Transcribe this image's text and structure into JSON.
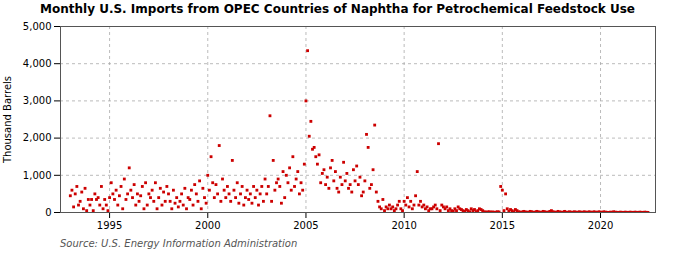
{
  "chart_data": {
    "type": "scatter",
    "title": "Monthly U.S. Imports from OPEC Countries of Naphtha for Petrochemical Feedstock Use",
    "ylabel": "Thousand Barrels",
    "source": "Source: U.S. Energy Information Administration",
    "color": "#cc0000",
    "marker": "square",
    "grid": true,
    "xlim": [
      1992.5,
      2022.8
    ],
    "xticks": [
      1995,
      2000,
      2005,
      2010,
      2015,
      2020
    ],
    "ylim": [
      0,
      5000
    ],
    "yticks": [
      0,
      {
        "value": 1000,
        "label": "1,000"
      },
      {
        "value": 2000,
        "label": "2,000"
      },
      {
        "value": 3000,
        "label": "3,000"
      },
      {
        "value": 4000,
        "label": "4,000"
      },
      {
        "value": 5000,
        "label": "5,000"
      }
    ],
    "x": [
      1993.0,
      1993.083,
      1993.167,
      1993.25,
      1993.333,
      1993.417,
      1993.5,
      1993.583,
      1993.667,
      1993.75,
      1993.833,
      1993.917,
      1994.0,
      1994.083,
      1994.167,
      1994.25,
      1994.333,
      1994.417,
      1994.5,
      1994.583,
      1994.667,
      1994.75,
      1994.833,
      1994.917,
      1995.0,
      1995.083,
      1995.167,
      1995.25,
      1995.333,
      1995.417,
      1995.5,
      1995.583,
      1995.667,
      1995.75,
      1995.833,
      1995.917,
      1996.0,
      1996.083,
      1996.167,
      1996.25,
      1996.333,
      1996.417,
      1996.5,
      1996.583,
      1996.667,
      1996.75,
      1996.833,
      1996.917,
      1997.0,
      1997.083,
      1997.167,
      1997.25,
      1997.333,
      1997.417,
      1997.5,
      1997.583,
      1997.667,
      1997.75,
      1997.833,
      1997.917,
      1998.0,
      1998.083,
      1998.167,
      1998.25,
      1998.333,
      1998.417,
      1998.5,
      1998.583,
      1998.667,
      1998.75,
      1998.833,
      1998.917,
      1999.0,
      1999.083,
      1999.167,
      1999.25,
      1999.333,
      1999.417,
      1999.5,
      1999.583,
      1999.667,
      1999.75,
      1999.833,
      1999.917,
      2000.0,
      2000.083,
      2000.167,
      2000.25,
      2000.333,
      2000.417,
      2000.5,
      2000.583,
      2000.667,
      2000.75,
      2000.833,
      2000.917,
      2001.0,
      2001.083,
      2001.167,
      2001.25,
      2001.333,
      2001.417,
      2001.5,
      2001.583,
      2001.667,
      2001.75,
      2001.833,
      2001.917,
      2002.0,
      2002.083,
      2002.167,
      2002.25,
      2002.333,
      2002.417,
      2002.5,
      2002.583,
      2002.667,
      2002.75,
      2002.833,
      2002.917,
      2003.0,
      2003.083,
      2003.167,
      2003.25,
      2003.333,
      2003.417,
      2003.5,
      2003.583,
      2003.667,
      2003.75,
      2003.833,
      2003.917,
      2004.0,
      2004.083,
      2004.167,
      2004.25,
      2004.333,
      2004.417,
      2004.5,
      2004.583,
      2004.667,
      2004.75,
      2004.833,
      2004.917,
      2005.0,
      2005.083,
      2005.167,
      2005.25,
      2005.333,
      2005.417,
      2005.5,
      2005.583,
      2005.667,
      2005.75,
      2005.833,
      2005.917,
      2006.0,
      2006.083,
      2006.167,
      2006.25,
      2006.333,
      2006.417,
      2006.5,
      2006.583,
      2006.667,
      2006.75,
      2006.833,
      2006.917,
      2007.0,
      2007.083,
      2007.167,
      2007.25,
      2007.333,
      2007.417,
      2007.5,
      2007.583,
      2007.667,
      2007.75,
      2007.833,
      2007.917,
      2008.0,
      2008.083,
      2008.167,
      2008.25,
      2008.333,
      2008.417,
      2008.5,
      2008.583,
      2008.667,
      2008.75,
      2008.833,
      2008.917,
      2009.0,
      2009.083,
      2009.167,
      2009.25,
      2009.333,
      2009.417,
      2009.5,
      2009.583,
      2009.667,
      2009.75,
      2009.833,
      2009.917,
      2010.0,
      2010.083,
      2010.167,
      2010.25,
      2010.333,
      2010.417,
      2010.5,
      2010.583,
      2010.667,
      2010.75,
      2010.833,
      2010.917,
      2011.0,
      2011.083,
      2011.167,
      2011.25,
      2011.333,
      2011.417,
      2011.5,
      2011.583,
      2011.667,
      2011.75,
      2011.833,
      2011.917,
      2012.0,
      2012.083,
      2012.167,
      2012.25,
      2012.333,
      2012.417,
      2012.5,
      2012.583,
      2012.667,
      2012.75,
      2012.833,
      2012.917,
      2013.0,
      2013.083,
      2013.167,
      2013.25,
      2013.333,
      2013.417,
      2013.5,
      2013.583,
      2013.667,
      2013.75,
      2013.833,
      2013.917,
      2014.0,
      2014.083,
      2014.167,
      2014.25,
      2014.333,
      2014.417,
      2014.5,
      2014.583,
      2014.667,
      2014.75,
      2014.833,
      2014.917,
      2015.0,
      2015.083,
      2015.167,
      2015.25,
      2015.333,
      2015.417,
      2015.5,
      2015.583,
      2015.667,
      2015.75,
      2015.833,
      2015.917,
      2016.0,
      2016.083,
      2016.167,
      2016.25,
      2016.333,
      2016.417,
      2016.5,
      2016.583,
      2016.667,
      2016.75,
      2016.833,
      2016.917,
      2017.0,
      2017.083,
      2017.167,
      2017.25,
      2017.333,
      2017.417,
      2017.5,
      2017.583,
      2017.667,
      2017.75,
      2017.833,
      2017.917,
      2018.0,
      2018.083,
      2018.167,
      2018.25,
      2018.333,
      2018.417,
      2018.5,
      2018.583,
      2018.667,
      2018.75,
      2018.833,
      2018.917,
      2019.0,
      2019.083,
      2019.167,
      2019.25,
      2019.333,
      2019.417,
      2019.5,
      2019.583,
      2019.667,
      2019.75,
      2019.833,
      2019.917,
      2020.0,
      2020.083,
      2020.167,
      2020.25,
      2020.333,
      2020.417,
      2020.5,
      2020.583,
      2020.667,
      2020.75,
      2020.833,
      2020.917,
      2021.0,
      2021.083,
      2021.167,
      2021.25,
      2021.333,
      2021.417,
      2021.5,
      2021.583,
      2021.667,
      2021.75,
      2021.833,
      2021.917,
      2022.0,
      2022.083,
      2022.167,
      2022.25,
      2022.333,
      2022.417
    ],
    "values": [
      450,
      600,
      150,
      500,
      700,
      200,
      300,
      550,
      100,
      650,
      50,
      350,
      200,
      350,
      50,
      500,
      350,
      400,
      200,
      700,
      100,
      350,
      200,
      50,
      400,
      800,
      500,
      350,
      600,
      200,
      450,
      700,
      100,
      900,
      350,
      500,
      1200,
      600,
      400,
      750,
      200,
      500,
      300,
      450,
      700,
      100,
      800,
      200,
      500,
      400,
      600,
      300,
      800,
      100,
      400,
      650,
      200,
      550,
      300,
      700,
      500,
      300,
      100,
      600,
      250,
      400,
      150,
      300,
      500,
      200,
      650,
      100,
      400,
      350,
      600,
      200,
      750,
      500,
      300,
      850,
      100,
      650,
      400,
      250,
      1000,
      600,
      1500,
      800,
      400,
      750,
      500,
      1800,
      300,
      900,
      600,
      400,
      700,
      500,
      300,
      1400,
      600,
      400,
      800,
      250,
      500,
      700,
      200,
      400,
      600,
      350,
      500,
      250,
      700,
      400,
      600,
      200,
      500,
      700,
      300,
      900,
      500,
      700,
      2600,
      300,
      1400,
      600,
      800,
      900,
      700,
      250,
      1100,
      400,
      1000,
      800,
      1200,
      600,
      1500,
      700,
      900,
      1100,
      500,
      800,
      600,
      1300,
      3000,
      4350,
      2050,
      2450,
      1700,
      1750,
      1500,
      1300,
      1550,
      800,
      1050,
      1150,
      750,
      950,
      650,
      1200,
      1400,
      850,
      1100,
      650,
      550,
      950,
      750,
      1350,
      850,
      1050,
      650,
      750,
      550,
      1150,
      850,
      1250,
      750,
      950,
      450,
      550,
      850,
      2100,
      1750,
      650,
      750,
      1150,
      2350,
      550,
      300,
      150,
      100,
      350,
      50,
      150,
      100,
      200,
      100,
      150,
      50,
      100,
      200,
      300,
      100,
      50,
      300,
      200,
      400,
      150,
      300,
      100,
      200,
      450,
      1100,
      200,
      300,
      150,
      200,
      100,
      150,
      50,
      100,
      100,
      150,
      200,
      100,
      1850,
      50,
      200,
      150,
      100,
      150,
      50,
      100,
      50,
      30,
      100,
      50,
      150,
      100,
      80,
      50,
      30,
      80,
      50,
      20,
      100,
      50,
      80,
      20,
      50,
      100,
      80,
      50,
      20,
      10,
      15,
      20,
      10,
      15,
      5,
      10,
      20,
      15,
      700,
      600,
      50,
      500,
      100,
      30,
      80,
      50,
      20,
      80,
      50,
      20,
      10,
      10,
      30,
      20,
      5,
      10,
      30,
      20,
      5,
      10,
      30,
      20,
      5,
      10,
      30,
      20,
      5,
      10,
      30,
      50,
      20,
      10,
      5,
      30,
      15,
      10,
      5,
      30,
      10,
      5,
      20,
      10,
      5,
      20,
      10,
      5,
      20,
      10,
      5,
      20,
      10,
      5,
      20,
      10,
      5,
      20,
      10,
      5,
      20,
      10,
      5,
      20,
      10,
      5,
      2,
      10,
      5,
      20,
      10,
      5,
      2,
      10,
      5,
      2,
      10,
      5,
      2,
      10,
      5,
      2,
      10,
      5,
      2,
      10,
      5,
      2,
      10,
      5,
      2
    ]
  }
}
